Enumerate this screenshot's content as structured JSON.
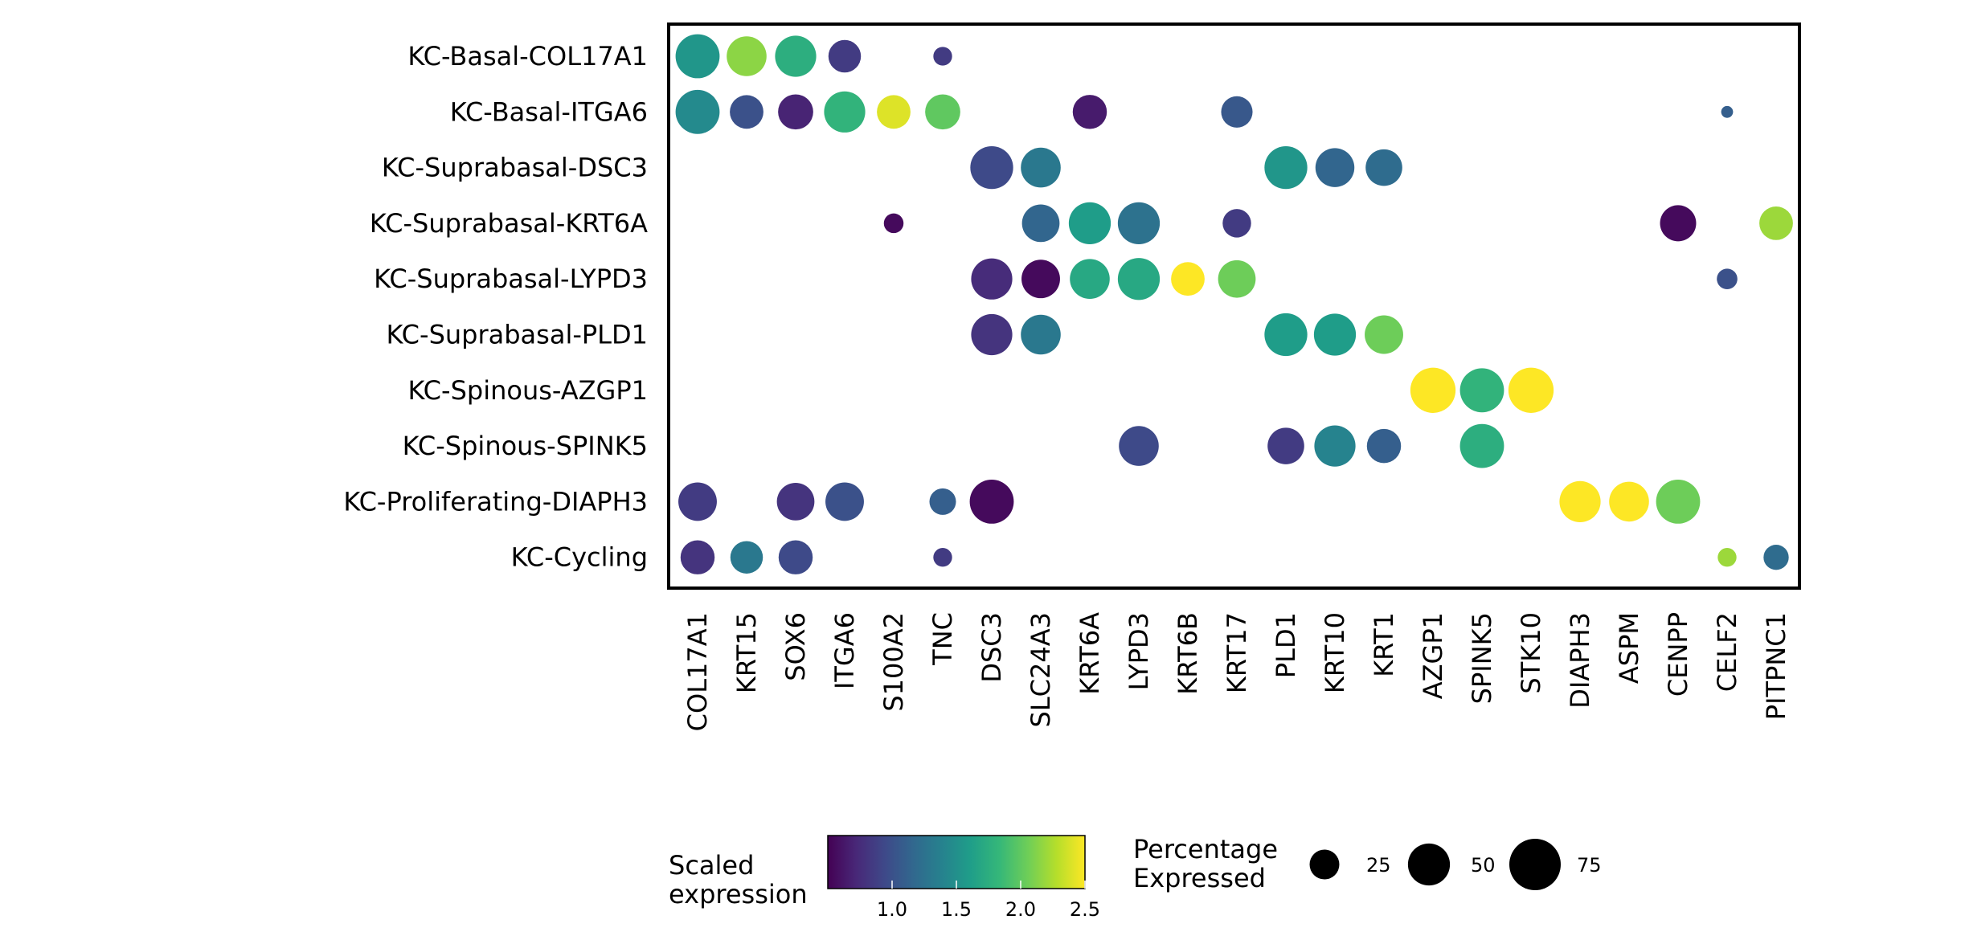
{
  "chart_data": {
    "type": "dotplot",
    "genes": [
      "COL17A1",
      "KRT15",
      "SOX6",
      "ITGA6",
      "S100A2",
      "TNC",
      "DSC3",
      "SLC24A3",
      "KRT6A",
      "LYPD3",
      "KRT6B",
      "KRT17",
      "PLD1",
      "KRT10",
      "KRT1",
      "AZGP1",
      "SPINK5",
      "STK10",
      "DIAPH3",
      "ASPM",
      "CENPP",
      "CELF2",
      "PITPNC1"
    ],
    "clusters": [
      "KC-Basal-COL17A1",
      "KC-Basal-ITGA6",
      "KC-Suprabasal-DSC3",
      "KC-Suprabasal-KRT6A",
      "KC-Suprabasal-LYPD3",
      "KC-Suprabasal-PLD1",
      "KC-Spinous-AZGP1",
      "KC-Spinous-SPINK5",
      "KC-Proliferating-DIAPH3",
      "KC-Cycling"
    ],
    "points": [
      {
        "cluster": "KC-Basal-COL17A1",
        "gene": "COL17A1",
        "expr": 1.55,
        "pct": 55
      },
      {
        "cluster": "KC-Basal-COL17A1",
        "gene": "KRT15",
        "expr": 2.15,
        "pct": 45
      },
      {
        "cluster": "KC-Basal-COL17A1",
        "gene": "SOX6",
        "expr": 1.75,
        "pct": 48
      },
      {
        "cluster": "KC-Basal-COL17A1",
        "gene": "ITGA6",
        "expr": 0.85,
        "pct": 30
      },
      {
        "cluster": "KC-Basal-COL17A1",
        "gene": "TNC",
        "expr": 0.85,
        "pct": 10
      },
      {
        "cluster": "KC-Basal-ITGA6",
        "gene": "COL17A1",
        "expr": 1.45,
        "pct": 55
      },
      {
        "cluster": "KC-Basal-ITGA6",
        "gene": "KRT15",
        "expr": 1.0,
        "pct": 32
      },
      {
        "cluster": "KC-Basal-ITGA6",
        "gene": "SOX6",
        "expr": 0.7,
        "pct": 35
      },
      {
        "cluster": "KC-Basal-ITGA6",
        "gene": "ITGA6",
        "expr": 1.8,
        "pct": 48
      },
      {
        "cluster": "KC-Basal-ITGA6",
        "gene": "S100A2",
        "expr": 2.4,
        "pct": 32
      },
      {
        "cluster": "KC-Basal-ITGA6",
        "gene": "TNC",
        "expr": 2.0,
        "pct": 35
      },
      {
        "cluster": "KC-Basal-ITGA6",
        "gene": "KRT6A",
        "expr": 0.65,
        "pct": 33
      },
      {
        "cluster": "KC-Basal-ITGA6",
        "gene": "KRT17",
        "expr": 1.05,
        "pct": 28
      },
      {
        "cluster": "KC-Basal-ITGA6",
        "gene": "CELF2",
        "expr": 1.1,
        "pct": 4
      },
      {
        "cluster": "KC-Suprabasal-DSC3",
        "gene": "DSC3",
        "expr": 0.95,
        "pct": 52
      },
      {
        "cluster": "KC-Suprabasal-DSC3",
        "gene": "SLC24A3",
        "expr": 1.3,
        "pct": 45
      },
      {
        "cluster": "KC-Suprabasal-DSC3",
        "gene": "PLD1",
        "expr": 1.55,
        "pct": 52
      },
      {
        "cluster": "KC-Suprabasal-DSC3",
        "gene": "KRT10",
        "expr": 1.15,
        "pct": 43
      },
      {
        "cluster": "KC-Suprabasal-DSC3",
        "gene": "KRT1",
        "expr": 1.2,
        "pct": 38
      },
      {
        "cluster": "KC-Suprabasal-KRT6A",
        "gene": "S100A2",
        "expr": 0.55,
        "pct": 11
      },
      {
        "cluster": "KC-Suprabasal-KRT6A",
        "gene": "SLC24A3",
        "expr": 1.15,
        "pct": 40
      },
      {
        "cluster": "KC-Suprabasal-KRT6A",
        "gene": "KRT6A",
        "expr": 1.6,
        "pct": 50
      },
      {
        "cluster": "KC-Suprabasal-KRT6A",
        "gene": "LYPD3",
        "expr": 1.25,
        "pct": 50
      },
      {
        "cluster": "KC-Suprabasal-KRT6A",
        "gene": "KRT17",
        "expr": 0.85,
        "pct": 23
      },
      {
        "cluster": "KC-Suprabasal-KRT6A",
        "gene": "CENPP",
        "expr": 0.55,
        "pct": 37
      },
      {
        "cluster": "KC-Suprabasal-KRT6A",
        "gene": "PITPNC1",
        "expr": 2.2,
        "pct": 32
      },
      {
        "cluster": "KC-Suprabasal-LYPD3",
        "gene": "DSC3",
        "expr": 0.75,
        "pct": 48
      },
      {
        "cluster": "KC-Suprabasal-LYPD3",
        "gene": "SLC24A3",
        "expr": 0.55,
        "pct": 42
      },
      {
        "cluster": "KC-Suprabasal-LYPD3",
        "gene": "KRT6A",
        "expr": 1.7,
        "pct": 45
      },
      {
        "cluster": "KC-Suprabasal-LYPD3",
        "gene": "LYPD3",
        "expr": 1.7,
        "pct": 50
      },
      {
        "cluster": "KC-Suprabasal-LYPD3",
        "gene": "KRT6B",
        "expr": 2.5,
        "pct": 32
      },
      {
        "cluster": "KC-Suprabasal-LYPD3",
        "gene": "KRT17",
        "expr": 2.05,
        "pct": 40
      },
      {
        "cluster": "KC-Suprabasal-LYPD3",
        "gene": "CELF2",
        "expr": 1.0,
        "pct": 12
      },
      {
        "cluster": "KC-Suprabasal-PLD1",
        "gene": "DSC3",
        "expr": 0.8,
        "pct": 48
      },
      {
        "cluster": "KC-Suprabasal-PLD1",
        "gene": "SLC24A3",
        "expr": 1.3,
        "pct": 45
      },
      {
        "cluster": "KC-Suprabasal-PLD1",
        "gene": "PLD1",
        "expr": 1.6,
        "pct": 52
      },
      {
        "cluster": "KC-Suprabasal-PLD1",
        "gene": "KRT10",
        "expr": 1.6,
        "pct": 50
      },
      {
        "cluster": "KC-Suprabasal-PLD1",
        "gene": "KRT1",
        "expr": 2.05,
        "pct": 42
      },
      {
        "cluster": "KC-Spinous-AZGP1",
        "gene": "AZGP1",
        "expr": 2.5,
        "pct": 58
      },
      {
        "cluster": "KC-Spinous-AZGP1",
        "gene": "SPINK5",
        "expr": 1.8,
        "pct": 55
      },
      {
        "cluster": "KC-Spinous-AZGP1",
        "gene": "STK10",
        "expr": 2.5,
        "pct": 58
      },
      {
        "cluster": "KC-Spinous-SPINK5",
        "gene": "LYPD3",
        "expr": 0.95,
        "pct": 45
      },
      {
        "cluster": "KC-Spinous-SPINK5",
        "gene": "PLD1",
        "expr": 0.85,
        "pct": 38
      },
      {
        "cluster": "KC-Spinous-SPINK5",
        "gene": "KRT10",
        "expr": 1.4,
        "pct": 48
      },
      {
        "cluster": "KC-Spinous-SPINK5",
        "gene": "KRT1",
        "expr": 1.1,
        "pct": 33
      },
      {
        "cluster": "KC-Spinous-SPINK5",
        "gene": "SPINK5",
        "expr": 1.75,
        "pct": 55
      },
      {
        "cluster": "KC-Proliferating-DIAPH3",
        "gene": "COL17A1",
        "expr": 0.85,
        "pct": 42
      },
      {
        "cluster": "KC-Proliferating-DIAPH3",
        "gene": "SOX6",
        "expr": 0.8,
        "pct": 40
      },
      {
        "cluster": "KC-Proliferating-DIAPH3",
        "gene": "ITGA6",
        "expr": 1.0,
        "pct": 42
      },
      {
        "cluster": "KC-Proliferating-DIAPH3",
        "gene": "TNC",
        "expr": 1.1,
        "pct": 20
      },
      {
        "cluster": "KC-Proliferating-DIAPH3",
        "gene": "DSC3",
        "expr": 0.55,
        "pct": 55
      },
      {
        "cluster": "KC-Proliferating-DIAPH3",
        "gene": "DIAPH3",
        "expr": 2.5,
        "pct": 48
      },
      {
        "cluster": "KC-Proliferating-DIAPH3",
        "gene": "ASPM",
        "expr": 2.5,
        "pct": 45
      },
      {
        "cluster": "KC-Proliferating-DIAPH3",
        "gene": "CENPP",
        "expr": 2.05,
        "pct": 55
      },
      {
        "cluster": "KC-Cycling",
        "gene": "COL17A1",
        "expr": 0.8,
        "pct": 33
      },
      {
        "cluster": "KC-Cycling",
        "gene": "KRT15",
        "expr": 1.3,
        "pct": 30
      },
      {
        "cluster": "KC-Cycling",
        "gene": "SOX6",
        "expr": 0.95,
        "pct": 33
      },
      {
        "cluster": "KC-Cycling",
        "gene": "TNC",
        "expr": 0.85,
        "pct": 10
      },
      {
        "cluster": "KC-Cycling",
        "gene": "CELF2",
        "expr": 2.2,
        "pct": 10
      },
      {
        "cluster": "KC-Cycling",
        "gene": "PITPNC1",
        "expr": 1.2,
        "pct": 18
      }
    ],
    "color_scale": {
      "title_line1": "Scaled",
      "title_line2": "expression",
      "range": [
        0.5,
        2.5
      ],
      "ticks": [
        "1.0",
        "1.5",
        "2.0",
        "2.5"
      ],
      "palette": "viridis",
      "stops": [
        "#440154",
        "#482878",
        "#3e4989",
        "#31688e",
        "#26828e",
        "#1f9e89",
        "#35b779",
        "#6ece58",
        "#b5de2b",
        "#fde725"
      ]
    },
    "size_scale": {
      "title_line1": "Percentage",
      "title_line2": "Expressed",
      "ticks": [
        25,
        50,
        75
      ],
      "tick_labels": [
        "25",
        "50",
        "75"
      ],
      "max_pct": 75
    },
    "grid": false
  }
}
